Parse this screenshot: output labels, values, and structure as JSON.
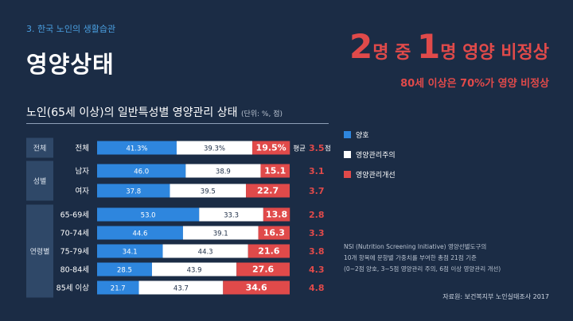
{
  "section": "3. 한국 노인의 생활습관",
  "main_title": "영양상태",
  "headline": {
    "n1": "2",
    "t1": "명 중 ",
    "n2": "1",
    "t2": "명 영양 비정상"
  },
  "subheadline": "80세 이상은 70%가 영양 비정상",
  "chart_title": "노인(65세 이상)의 일반특성별 영양관리 상태",
  "chart_unit": "(단위: %, 점)",
  "legend": [
    {
      "label": "양호",
      "color": "#2e86de"
    },
    {
      "label": "영양관리주의",
      "color": "#ffffff"
    },
    {
      "label": "영양관리개선",
      "color": "#e04a4a"
    }
  ],
  "avg_label": "평균",
  "avg_unit": "점",
  "note_lines": [
    "NSI (Nutrition Screening Initiative) 영양선별도구의",
    "10개 항목에 문항별 가중치를 부여한 총점 21점 기준",
    "(0~2점 양호, 3~5점 영양관리 주의, 6점 이상 영양관리 개선)"
  ],
  "source": "자료원: 보건복지부 노인실태조사 2017",
  "colors": {
    "good": "#2e86de",
    "caution": "#ffffff",
    "improve": "#e04a4a",
    "accent": "#e04a4a"
  },
  "chart_data": {
    "type": "bar",
    "orientation": "horizontal",
    "stacked": true,
    "groups": [
      {
        "name": "전체",
        "categories": [
          "전체"
        ]
      },
      {
        "name": "성별",
        "categories": [
          "남자",
          "여자"
        ]
      },
      {
        "name": "연령별",
        "categories": [
          "65-69세",
          "70-74세",
          "75-79세",
          "80-84세",
          "85세 이상"
        ]
      }
    ],
    "categories": [
      "전체",
      "남자",
      "여자",
      "65-69세",
      "70-74세",
      "75-79세",
      "80-84세",
      "85세 이상"
    ],
    "series": [
      {
        "name": "양호",
        "values": [
          41.3,
          46.0,
          37.8,
          53.0,
          44.6,
          34.1,
          28.5,
          21.7
        ],
        "labels": [
          "41.3%",
          "46.0",
          "37.8",
          "53.0",
          "44.6",
          "34.1",
          "28.5",
          "21.7"
        ]
      },
      {
        "name": "영양관리주의",
        "values": [
          39.3,
          38.9,
          39.5,
          33.3,
          39.1,
          44.3,
          43.9,
          43.7
        ],
        "labels": [
          "39.3%",
          "38.9",
          "39.5",
          "33.3",
          "39.1",
          "44.3",
          "43.9",
          "43.7"
        ]
      },
      {
        "name": "영양관리개선",
        "values": [
          19.5,
          15.1,
          22.7,
          13.8,
          16.3,
          21.6,
          27.6,
          34.6
        ],
        "labels": [
          "19.5%",
          "15.1",
          "22.7",
          "13.8",
          "16.3",
          "21.6",
          "27.6",
          "34.6"
        ]
      }
    ],
    "average_scores": [
      3.5,
      3.1,
      3.7,
      2.8,
      3.3,
      3.8,
      4.3,
      4.8
    ],
    "xlim": [
      0,
      100
    ]
  }
}
